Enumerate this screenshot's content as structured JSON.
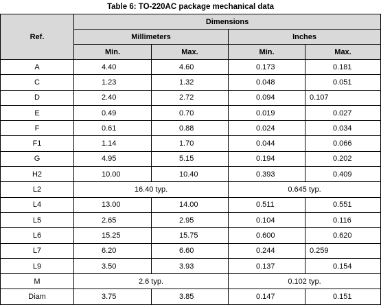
{
  "title": "Table 6: TO-220AC package mechanical data",
  "header": {
    "ref": "Ref.",
    "dimensions": "Dimensions",
    "millimeters": "Millimeters",
    "inches": "Inches",
    "sub": [
      "Min.",
      "Max.",
      "Min.",
      "Max."
    ]
  },
  "rows": [
    [
      "A",
      "4.40",
      "4.60",
      "0.173",
      "0.181"
    ],
    [
      "C",
      "1.23",
      "1.32",
      "0.048",
      "0.051"
    ],
    [
      "D",
      "2.40",
      "2.72",
      "0.094",
      "0.107"
    ],
    [
      "E",
      "0.49",
      "0.70",
      "0.019",
      "0.027"
    ],
    [
      "F",
      "0.61",
      "0.88",
      "0.024",
      "0.034"
    ],
    [
      "F1",
      "1.14",
      "1.70",
      "0.044",
      "0.066"
    ],
    [
      "G",
      "4.95",
      "5.15",
      "0.194",
      "0.202"
    ],
    [
      "H2",
      "10.00",
      "10.40",
      "0.393",
      "0.409"
    ],
    [
      "L2",
      "16.40 typ.",
      "0.645 typ."
    ],
    [
      "L4",
      "13.00",
      "14.00",
      "0.511",
      "0.551"
    ],
    [
      "L5",
      "2.65",
      "2.95",
      "0.104",
      "0.116"
    ],
    [
      "L6",
      "15.25",
      "15.75",
      "0.600",
      "0.620"
    ],
    [
      "L7",
      "6.20",
      "6.60",
      "0.244",
      "0.259"
    ],
    [
      "L9",
      "3.50",
      "3.93",
      "0.137",
      "0.154"
    ],
    [
      "M",
      "2.6 typ.",
      "0.102 typ."
    ],
    [
      "Diam",
      "3.75",
      "3.85",
      "0.147",
      "0.151"
    ]
  ]
}
